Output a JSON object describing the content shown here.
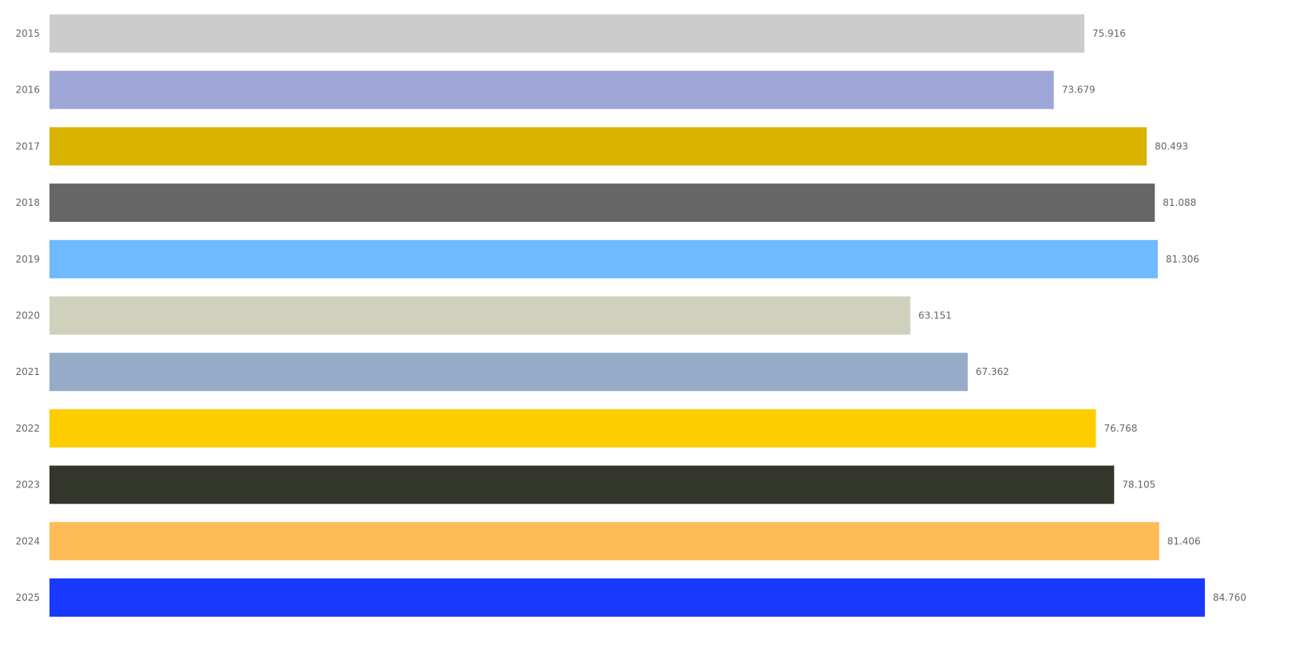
{
  "chart_data": {
    "type": "bar",
    "orientation": "horizontal",
    "categories": [
      "2015",
      "2016",
      "2017",
      "2018",
      "2019",
      "2020",
      "2021",
      "2022",
      "2023",
      "2024",
      "2025"
    ],
    "values": [
      75.916,
      73.679,
      80.493,
      81.088,
      81.306,
      63.151,
      67.362,
      76.768,
      78.105,
      81.406,
      84.76
    ],
    "value_labels": [
      "75.916",
      "73.679",
      "80.493",
      "81.088",
      "81.306",
      "63.151",
      "67.362",
      "76.768",
      "78.105",
      "81.406",
      "84.760"
    ],
    "colors": [
      "#cccccc",
      "#9fa7d8",
      "#d9b300",
      "#666666",
      "#6fb9ff",
      "#d0d1bc",
      "#95abc8",
      "#ffce00",
      "#33362a",
      "#ffbb58",
      "#1a39ff"
    ],
    "title": "",
    "xlabel": "",
    "ylabel": "",
    "xlim": [
      0,
      84.76
    ],
    "grid": false,
    "legend": "none"
  }
}
